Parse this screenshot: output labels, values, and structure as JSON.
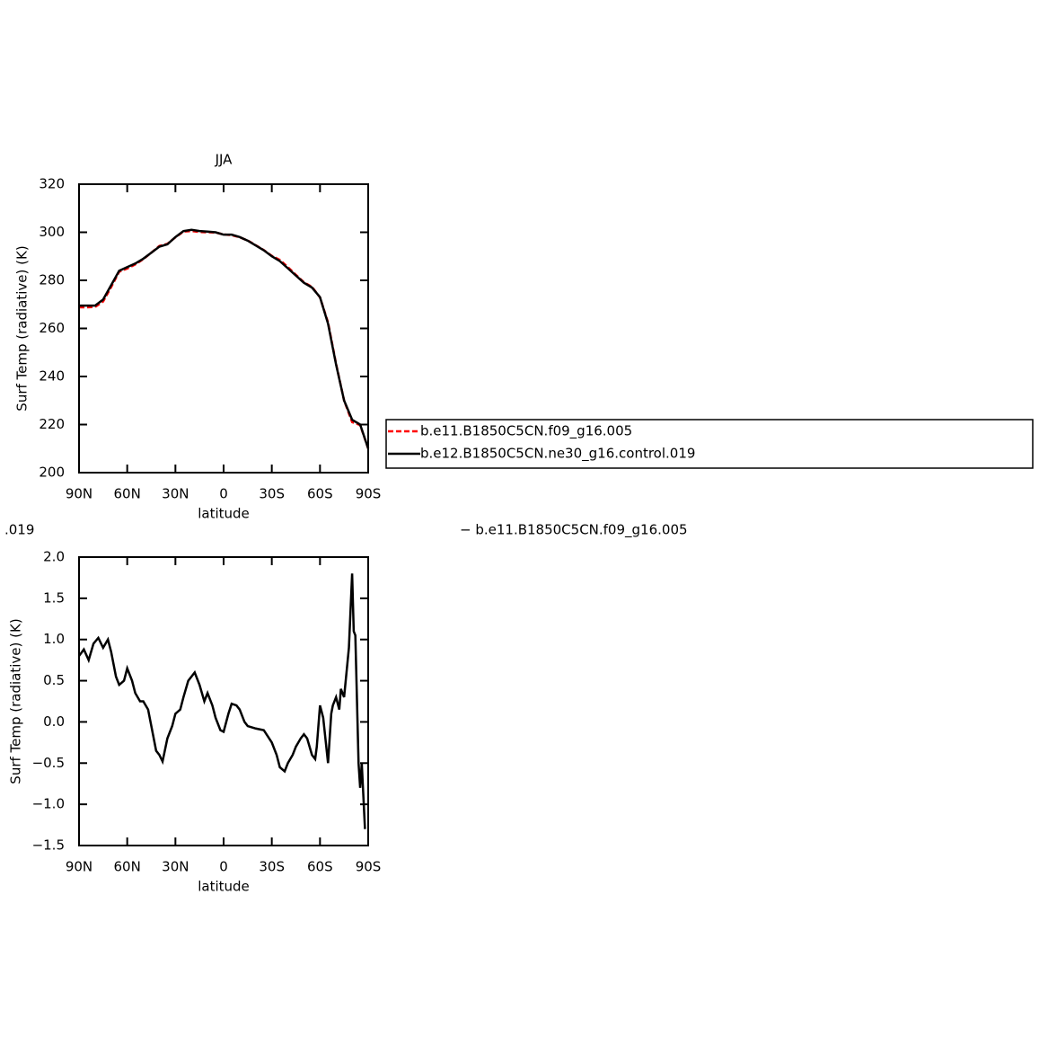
{
  "chart_data": [
    {
      "type": "line",
      "title": "JJA",
      "xlabel": "latitude",
      "ylabel": "Surf Temp (radiative) (K)",
      "x": [
        90,
        85,
        80,
        75,
        70,
        65,
        60,
        55,
        50,
        45,
        40,
        35,
        30,
        25,
        20,
        15,
        10,
        5,
        0,
        -5,
        -10,
        -15,
        -20,
        -25,
        -30,
        -35,
        -40,
        -45,
        -50,
        -55,
        -60,
        -65,
        -70,
        -75,
        -80,
        -85,
        -90
      ],
      "series": [
        {
          "name": "b.e11.B1850C5CN.f09_g16.005",
          "color": "#ff0000",
          "dashed": true,
          "values": [
            268.8,
            268.8,
            268.9,
            271.2,
            277.2,
            283.6,
            284.9,
            286.6,
            288.8,
            291.5,
            294.3,
            295.2,
            297.9,
            300.3,
            300.5,
            300.1,
            300.0,
            299.9,
            299.1,
            298.8,
            297.9,
            296.6,
            294.6,
            292.6,
            290.2,
            288.5,
            285.5,
            282.3,
            279.2,
            277.3,
            272.9,
            262.5,
            245.3,
            230.0,
            221.0,
            219.8,
            210.0
          ]
        },
        {
          "name": "b.e12.B1850C5CN.ne30_g16.control.019",
          "color": "#000000",
          "dashed": false,
          "values": [
            269.5,
            269.5,
            269.5,
            272.0,
            278.0,
            284.0,
            285.5,
            287.0,
            289.0,
            291.5,
            294.0,
            295.0,
            298.0,
            300.5,
            301.0,
            300.5,
            300.3,
            300.0,
            299.0,
            299.0,
            298.0,
            296.5,
            294.5,
            292.5,
            290.0,
            288.0,
            285.0,
            282.0,
            279.0,
            277.0,
            273.0,
            262.0,
            245.0,
            230.0,
            222.0,
            220.0,
            210.0
          ]
        }
      ],
      "xlim": [
        90,
        -90
      ],
      "xticks": [
        {
          "value": 90,
          "label": "90N"
        },
        {
          "value": 60,
          "label": "60N"
        },
        {
          "value": 30,
          "label": "30N"
        },
        0,
        {
          "value": -30,
          "label": "30S"
        },
        {
          "value": -60,
          "label": "60S"
        },
        {
          "value": -90,
          "label": "90S"
        }
      ],
      "ylim": [
        200,
        320
      ],
      "yticks": [
        200,
        220,
        240,
        260,
        280,
        300,
        320
      ],
      "legend": "right"
    },
    {
      "type": "line",
      "title_fragments": [
        ".019",
        "− b.e11.B1850C5CN.f09_g16.005"
      ],
      "xlabel": "latitude",
      "ylabel": "Surf Temp (radiative) (K)",
      "x": [
        90,
        87,
        84,
        81,
        78,
        75,
        72,
        70,
        67,
        65,
        62,
        60,
        57,
        55,
        52,
        50,
        47,
        45,
        42,
        40,
        38,
        35,
        32,
        30,
        27,
        25,
        22,
        20,
        18,
        15,
        12,
        10,
        7,
        5,
        2,
        0,
        -3,
        -5,
        -8,
        -10,
        -13,
        -15,
        -20,
        -25,
        -30,
        -33,
        -35,
        -38,
        -40,
        -43,
        -45,
        -48,
        -50,
        -52,
        -55,
        -57,
        -58,
        -60,
        -62,
        -65,
        -67,
        -68,
        -70,
        -72,
        -73,
        -75,
        -76,
        -78,
        -80,
        -81,
        -82,
        -84,
        -85,
        -86,
        -88
      ],
      "values": [
        0.8,
        0.88,
        0.75,
        0.95,
        1.02,
        0.9,
        1.0,
        0.85,
        0.55,
        0.45,
        0.5,
        0.65,
        0.5,
        0.35,
        0.25,
        0.25,
        0.15,
        -0.05,
        -0.35,
        -0.4,
        -0.48,
        -0.2,
        -0.05,
        0.1,
        0.15,
        0.3,
        0.5,
        0.55,
        0.6,
        0.45,
        0.25,
        0.35,
        0.2,
        0.05,
        -0.1,
        -0.12,
        0.1,
        0.22,
        0.2,
        0.15,
        0.0,
        -0.05,
        -0.08,
        -0.1,
        -0.25,
        -0.4,
        -0.55,
        -0.6,
        -0.5,
        -0.4,
        -0.3,
        -0.2,
        -0.15,
        -0.2,
        -0.4,
        -0.45,
        -0.3,
        0.2,
        0.05,
        -0.5,
        0.1,
        0.2,
        0.3,
        0.15,
        0.4,
        0.3,
        0.5,
        0.9,
        1.8,
        1.1,
        1.05,
        -0.5,
        -0.8,
        -0.5,
        -1.3
      ],
      "color": "#000000",
      "xlim": [
        90,
        -90
      ],
      "xticks": [
        {
          "value": 90,
          "label": "90N"
        },
        {
          "value": 60,
          "label": "60N"
        },
        {
          "value": 30,
          "label": "30N"
        },
        0,
        {
          "value": -30,
          "label": "30S"
        },
        {
          "value": -60,
          "label": "60S"
        },
        {
          "value": -90,
          "label": "90S"
        }
      ],
      "ylim": [
        -1.5,
        2.0
      ],
      "yticks": [
        {
          "value": -1.5,
          "label": "−1.5"
        },
        {
          "value": -1,
          "label": "−1.0"
        },
        {
          "value": -0.5,
          "label": "−0.5"
        },
        {
          "value": 0,
          "label": "0.0"
        },
        0.5,
        {
          "value": 1,
          "label": "1.0"
        },
        1.5,
        {
          "value": 2,
          "label": "2.0"
        }
      ]
    }
  ]
}
